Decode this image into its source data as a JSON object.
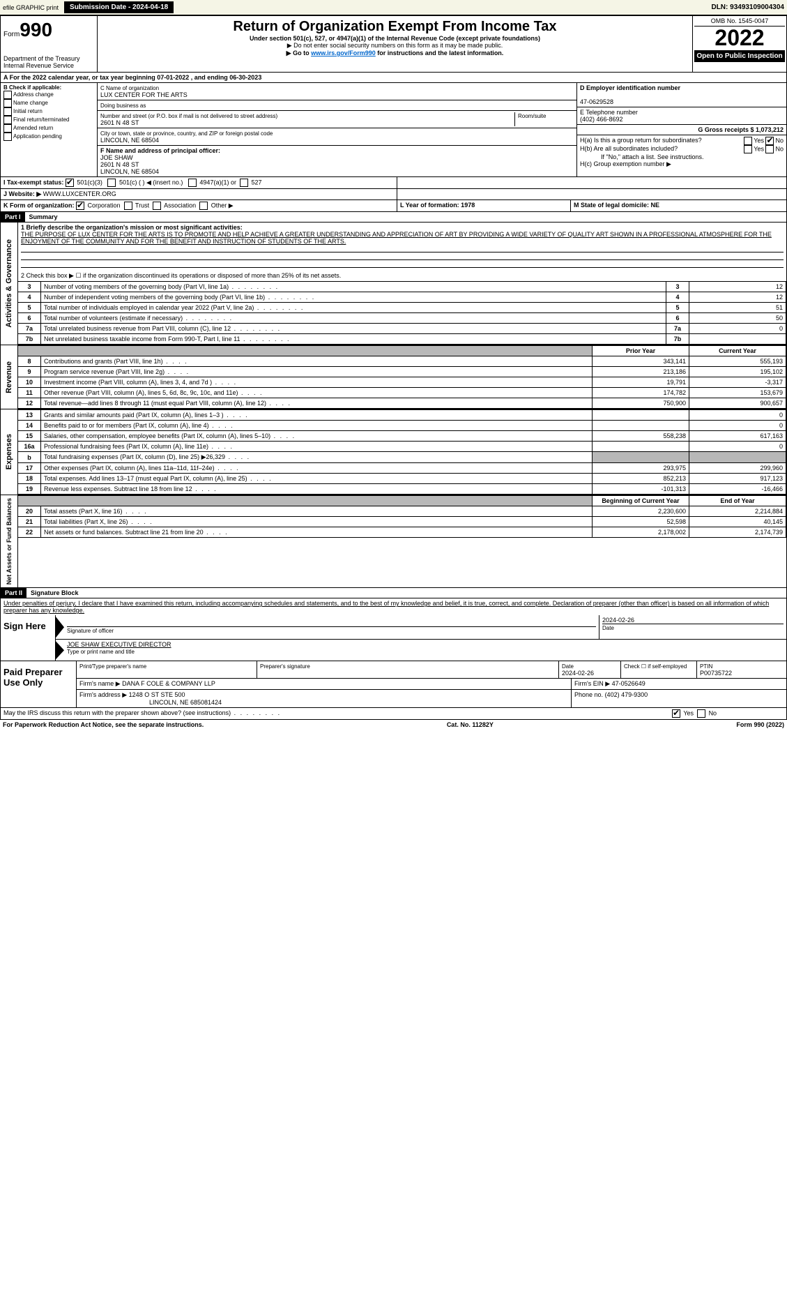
{
  "topbar": {
    "efile": "efile GRAPHIC print",
    "submission": "Submission Date - 2024-04-18",
    "dln": "DLN: 93493109004304"
  },
  "header": {
    "form_label": "Form",
    "form_num": "990",
    "title": "Return of Organization Exempt From Income Tax",
    "sub": "Under section 501(c), 527, or 4947(a)(1) of the Internal Revenue Code (except private foundations)",
    "note1": "▶ Do not enter social security numbers on this form as it may be made public.",
    "note2_pre": "▶ Go to ",
    "note2_link": "www.irs.gov/Form990",
    "note2_post": " for instructions and the latest information.",
    "dept": "Department of the Treasury",
    "irs": "Internal Revenue Service",
    "omb": "OMB No. 1545-0047",
    "year": "2022",
    "open": "Open to Public Inspection"
  },
  "taxyear": "A For the 2022 calendar year, or tax year beginning 07-01-2022    , and ending 06-30-2023",
  "colB": {
    "title": "B Check if applicable:",
    "opts": [
      "Address change",
      "Name change",
      "Initial return",
      "Final return/terminated",
      "Amended return",
      "Application pending"
    ]
  },
  "colC": {
    "name_label": "C Name of organization",
    "name": "LUX CENTER FOR THE ARTS",
    "dba_label": "Doing business as",
    "addr_label": "Number and street (or P.O. box if mail is not delivered to street address)",
    "room_label": "Room/suite",
    "addr": "2601 N 48 ST",
    "city_label": "City or town, state or province, country, and ZIP or foreign postal code",
    "city": "LINCOLN, NE  68504",
    "f_label": "F Name and address of principal officer:",
    "f_name": "JOE SHAW",
    "f_addr": "2601 N 48 ST",
    "f_city": "LINCOLN, NE  68504"
  },
  "colRight": {
    "d_label": "D Employer identification number",
    "d_val": "47-0629528",
    "e_label": "E Telephone number",
    "e_val": "(402) 466-8692",
    "g_label": "G Gross receipts $ 1,073,212",
    "ha_label": "H(a)  Is this a group return for subordinates?",
    "hb_label": "H(b)  Are all subordinates included?",
    "h_note": "If \"No,\" attach a list. See instructions.",
    "hc_label": "H(c)  Group exemption number ▶",
    "yes": "Yes",
    "no": "No"
  },
  "rowI": {
    "label": "I    Tax-exempt status:",
    "o1": "501(c)(3)",
    "o2": "501(c) (   ) ◀ (insert no.)",
    "o3": "4947(a)(1) or",
    "o4": "527"
  },
  "rowJ": {
    "label": "J    Website: ▶",
    "val": "WWW.LUXCENTER.ORG"
  },
  "rowK": {
    "label": "K Form of organization:",
    "o1": "Corporation",
    "o2": "Trust",
    "o3": "Association",
    "o4": "Other ▶",
    "l_label": "L Year of formation: 1978",
    "m_label": "M State of legal domicile: NE"
  },
  "part1": {
    "header": "Part I",
    "title": "Summary",
    "q1": "1  Briefly describe the organization's mission or most significant activities:",
    "mission": "THE PURPOSE OF LUX CENTER FOR THE ARTS IS TO PROMOTE AND HELP ACHIEVE A GREATER UNDERSTANDING AND APPRECIATION OF ART BY PROVIDING A WIDE VARIETY OF QUALITY ART SHOWN IN A PROFESSIONAL ATMOSPHERE FOR THE ENJOYMENT OF THE COMMUNITY AND FOR THE BENEFIT AND INSTRUCTION OF STUDENTS OF THE ARTS.",
    "q2": "2   Check this box ▶ ☐  if the organization discontinued its operations or disposed of more than 25% of its net assets.",
    "rows_gov": [
      {
        "n": "3",
        "t": "Number of voting members of the governing body (Part VI, line 1a)",
        "v": "12"
      },
      {
        "n": "4",
        "t": "Number of independent voting members of the governing body (Part VI, line 1b)",
        "v": "12"
      },
      {
        "n": "5",
        "t": "Total number of individuals employed in calendar year 2022 (Part V, line 2a)",
        "v": "51"
      },
      {
        "n": "6",
        "t": "Total number of volunteers (estimate if necessary)",
        "v": "50"
      },
      {
        "n": "7a",
        "t": "Total unrelated business revenue from Part VIII, column (C), line 12",
        "v": "0"
      },
      {
        "n": "7b",
        "t": "Net unrelated business taxable income from Form 990-T, Part I, line 11",
        "v": ""
      }
    ],
    "prior": "Prior Year",
    "current": "Current Year",
    "rows_rev": [
      {
        "n": "8",
        "t": "Contributions and grants (Part VIII, line 1h)",
        "p": "343,141",
        "c": "555,193"
      },
      {
        "n": "9",
        "t": "Program service revenue (Part VIII, line 2g)",
        "p": "213,186",
        "c": "195,102"
      },
      {
        "n": "10",
        "t": "Investment income (Part VIII, column (A), lines 3, 4, and 7d )",
        "p": "19,791",
        "c": "-3,317"
      },
      {
        "n": "11",
        "t": "Other revenue (Part VIII, column (A), lines 5, 6d, 8c, 9c, 10c, and 11e)",
        "p": "174,782",
        "c": "153,679"
      },
      {
        "n": "12",
        "t": "Total revenue—add lines 8 through 11 (must equal Part VIII, column (A), line 12)",
        "p": "750,900",
        "c": "900,657"
      }
    ],
    "rows_exp": [
      {
        "n": "13",
        "t": "Grants and similar amounts paid (Part IX, column (A), lines 1–3 )",
        "p": "",
        "c": "0"
      },
      {
        "n": "14",
        "t": "Benefits paid to or for members (Part IX, column (A), line 4)",
        "p": "",
        "c": "0"
      },
      {
        "n": "15",
        "t": "Salaries, other compensation, employee benefits (Part IX, column (A), lines 5–10)",
        "p": "558,238",
        "c": "617,163"
      },
      {
        "n": "16a",
        "t": "Professional fundraising fees (Part IX, column (A), line 11e)",
        "p": "",
        "c": "0"
      },
      {
        "n": "b",
        "t": "Total fundraising expenses (Part IX, column (D), line 25) ▶26,329",
        "p": "shade",
        "c": "shade"
      },
      {
        "n": "17",
        "t": "Other expenses (Part IX, column (A), lines 11a–11d, 11f–24e)",
        "p": "293,975",
        "c": "299,960"
      },
      {
        "n": "18",
        "t": "Total expenses. Add lines 13–17 (must equal Part IX, column (A), line 25)",
        "p": "852,213",
        "c": "917,123"
      },
      {
        "n": "19",
        "t": "Revenue less expenses. Subtract line 18 from line 12",
        "p": "-101,313",
        "c": "-16,466"
      }
    ],
    "begin": "Beginning of Current Year",
    "end": "End of Year",
    "rows_net": [
      {
        "n": "20",
        "t": "Total assets (Part X, line 16)",
        "p": "2,230,600",
        "c": "2,214,884"
      },
      {
        "n": "21",
        "t": "Total liabilities (Part X, line 26)",
        "p": "52,598",
        "c": "40,145"
      },
      {
        "n": "22",
        "t": "Net assets or fund balances. Subtract line 21 from line 20",
        "p": "2,178,002",
        "c": "2,174,739"
      }
    ],
    "side_gov": "Activities & Governance",
    "side_rev": "Revenue",
    "side_exp": "Expenses",
    "side_net": "Net Assets or Fund Balances"
  },
  "part2": {
    "header": "Part II",
    "title": "Signature Block",
    "decl": "Under penalties of perjury, I declare that I have examined this return, including accompanying schedules and statements, and to the best of my knowledge and belief, it is true, correct, and complete. Declaration of preparer (other than officer) is based on all information of which preparer has any knowledge.",
    "sign_here": "Sign Here",
    "sig_officer": "Signature of officer",
    "sig_date": "2024-02-26",
    "date_label": "Date",
    "officer_name": "JOE SHAW  EXECUTIVE DIRECTOR",
    "type_label": "Type or print name and title",
    "paid": "Paid Preparer Use Only",
    "prep_name_label": "Print/Type preparer's name",
    "prep_sig_label": "Preparer's signature",
    "prep_date": "2024-02-26",
    "check_self": "Check ☐ if self-employed",
    "ptin_label": "PTIN",
    "ptin": "P00735722",
    "firm_name_label": "Firm's name    ▶",
    "firm_name": "DANA F COLE & COMPANY LLP",
    "firm_ein_label": "Firm's EIN ▶",
    "firm_ein": "47-0526649",
    "firm_addr_label": "Firm's address ▶",
    "firm_addr": "1248 O ST STE 500",
    "firm_city": "LINCOLN, NE  685081424",
    "phone_label": "Phone no.",
    "phone": "(402) 479-9300",
    "discuss": "May the IRS discuss this return with the preparer shown above? (see instructions)"
  },
  "footer": {
    "pra": "For Paperwork Reduction Act Notice, see the separate instructions.",
    "cat": "Cat. No. 11282Y",
    "form": "Form 990 (2022)"
  }
}
